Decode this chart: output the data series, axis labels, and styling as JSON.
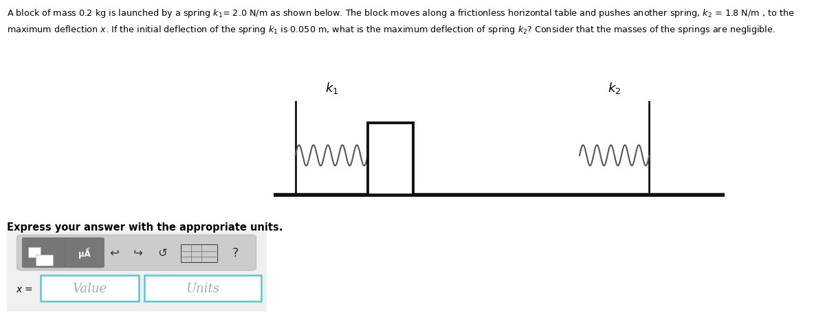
{
  "title_line1": "A block of mass 0.2 kg is launched by a spring $k_1$= 2.0 N/m as shown below. The block moves along a frictionless horizontal table and pushes another spring, $k_2$ = 1.8 N/m , to the",
  "title_line2": "maximum deflection $x$. If the initial deflection of the spring $k_1$ is 0.050 m, what is the maximum deflection of spring $k_2$? Consider that the masses of the springs are negligible.",
  "express_label": "Express your answer with the appropriate units.",
  "value_placeholder": "Value",
  "units_placeholder": "Units",
  "k1_label": "$k_1$",
  "k2_label": "$k_2$",
  "bg_color": "#ffffff",
  "text_color": "#000000",
  "box_border_color": "#5bc8d0",
  "table_color": "#111111",
  "spring_color": "#555555",
  "block_color": "#ffffff",
  "block_border": "#111111",
  "toolbar_bg": "#888888",
  "toolbar_inner_bg": "#cccccc"
}
